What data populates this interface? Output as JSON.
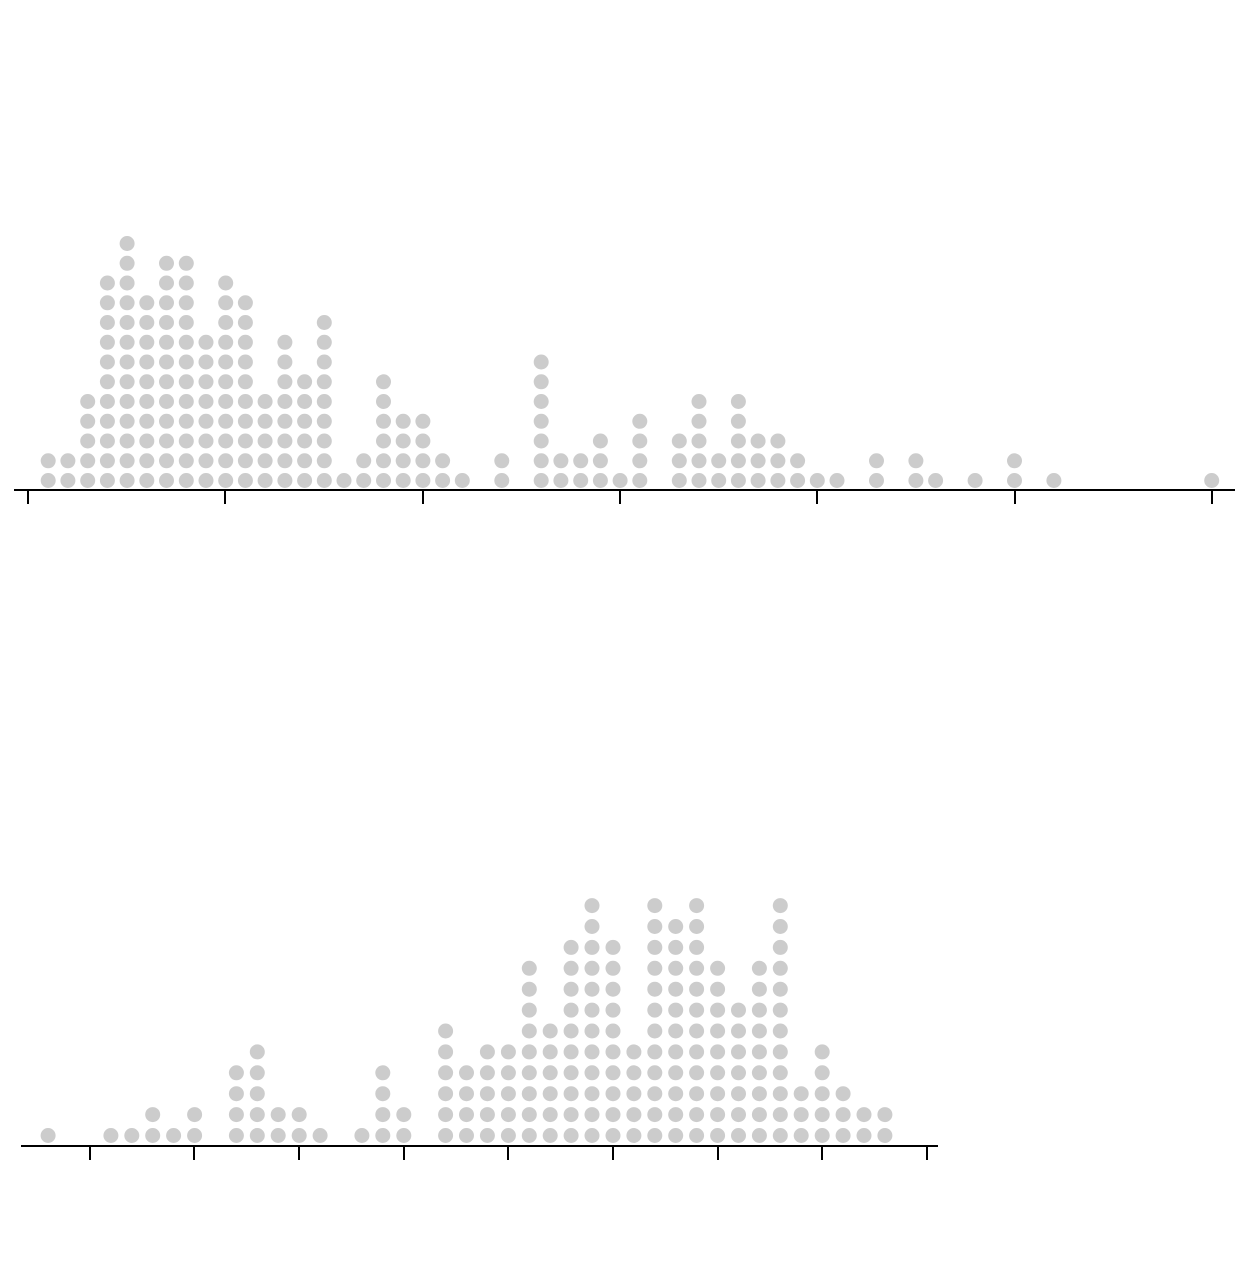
{
  "chart_data": [
    {
      "type": "dot-plot",
      "title": "",
      "xlabel": "",
      "ylabel": "",
      "tick_labels": [],
      "grid": false,
      "legend": "none",
      "marker_color": "#cccccc",
      "highlight_color": "#ffff00",
      "highlight_stroke": "#000000",
      "columns": [
        {
          "bin": 1,
          "count": 2
        },
        {
          "bin": 2,
          "count": 2
        },
        {
          "bin": 3,
          "count": 5
        },
        {
          "bin": 4,
          "count": 11
        },
        {
          "bin": 5,
          "count": 13
        },
        {
          "bin": 6,
          "count": 10
        },
        {
          "bin": 7,
          "count": 12
        },
        {
          "bin": 8,
          "count": 12
        },
        {
          "bin": 9,
          "count": 8
        },
        {
          "bin": 10,
          "count": 11
        },
        {
          "bin": 11,
          "count": 10
        },
        {
          "bin": 12,
          "count": 5
        },
        {
          "bin": 13,
          "count": 8
        },
        {
          "bin": 14,
          "count": 6
        },
        {
          "bin": 15,
          "count": 9
        },
        {
          "bin": 16,
          "count": 1
        },
        {
          "bin": 17,
          "count": 2
        },
        {
          "bin": 18,
          "count": 6
        },
        {
          "bin": 19,
          "count": 4
        },
        {
          "bin": 20,
          "count": 4
        },
        {
          "bin": 21,
          "count": 2
        },
        {
          "bin": 22,
          "count": 1
        },
        {
          "bin": 24,
          "count": 2
        },
        {
          "bin": 26,
          "count": 7
        },
        {
          "bin": 27,
          "count": 2
        },
        {
          "bin": 28,
          "count": 2
        },
        {
          "bin": 29,
          "count": 3
        },
        {
          "bin": 30,
          "count": 1
        },
        {
          "bin": 31,
          "count": 4
        },
        {
          "bin": 33,
          "count": 3
        },
        {
          "bin": 34,
          "count": 5
        },
        {
          "bin": 35,
          "count": 2
        },
        {
          "bin": 36,
          "count": 5
        },
        {
          "bin": 37,
          "count": 3
        },
        {
          "bin": 38,
          "count": 3
        },
        {
          "bin": 39,
          "count": 2
        },
        {
          "bin": 40,
          "count": 1
        },
        {
          "bin": 41,
          "count": 1
        },
        {
          "bin": 43,
          "count": 2
        },
        {
          "bin": 45,
          "count": 2
        },
        {
          "bin": 46,
          "count": 1
        },
        {
          "bin": 48,
          "count": 1
        },
        {
          "bin": 50,
          "count": 2
        },
        {
          "bin": 52,
          "count": 1
        },
        {
          "bin": 60,
          "count": 1
        }
      ],
      "highlight": {
        "bin": 7,
        "level": 12
      }
    },
    {
      "type": "dot-plot",
      "title": "",
      "xlabel": "",
      "ylabel": "",
      "tick_labels": [],
      "grid": false,
      "legend": "none",
      "marker_color": "#cccccc",
      "highlight_color": "#ffff00",
      "highlight_stroke": "#000000",
      "columns": [
        {
          "bin": 1,
          "count": 1
        },
        {
          "bin": 4,
          "count": 1
        },
        {
          "bin": 5,
          "count": 1
        },
        {
          "bin": 6,
          "count": 2
        },
        {
          "bin": 7,
          "count": 1
        },
        {
          "bin": 8,
          "count": 2
        },
        {
          "bin": 10,
          "count": 4
        },
        {
          "bin": 11,
          "count": 5
        },
        {
          "bin": 12,
          "count": 2
        },
        {
          "bin": 13,
          "count": 2
        },
        {
          "bin": 14,
          "count": 1
        },
        {
          "bin": 16,
          "count": 1
        },
        {
          "bin": 17,
          "count": 4
        },
        {
          "bin": 18,
          "count": 2
        },
        {
          "bin": 20,
          "count": 6
        },
        {
          "bin": 21,
          "count": 4
        },
        {
          "bin": 22,
          "count": 5
        },
        {
          "bin": 23,
          "count": 5
        },
        {
          "bin": 24,
          "count": 9
        },
        {
          "bin": 25,
          "count": 6
        },
        {
          "bin": 26,
          "count": 10
        },
        {
          "bin": 27,
          "count": 12
        },
        {
          "bin": 28,
          "count": 10
        },
        {
          "bin": 29,
          "count": 5
        },
        {
          "bin": 30,
          "count": 12
        },
        {
          "bin": 31,
          "count": 11
        },
        {
          "bin": 32,
          "count": 12
        },
        {
          "bin": 33,
          "count": 9
        },
        {
          "bin": 34,
          "count": 7
        },
        {
          "bin": 35,
          "count": 9
        },
        {
          "bin": 36,
          "count": 12
        },
        {
          "bin": 37,
          "count": 3
        },
        {
          "bin": 38,
          "count": 5
        },
        {
          "bin": 39,
          "count": 3
        },
        {
          "bin": 40,
          "count": 2
        },
        {
          "bin": 41,
          "count": 2
        }
      ],
      "highlight": {
        "bin": 33,
        "level": 9
      }
    }
  ]
}
